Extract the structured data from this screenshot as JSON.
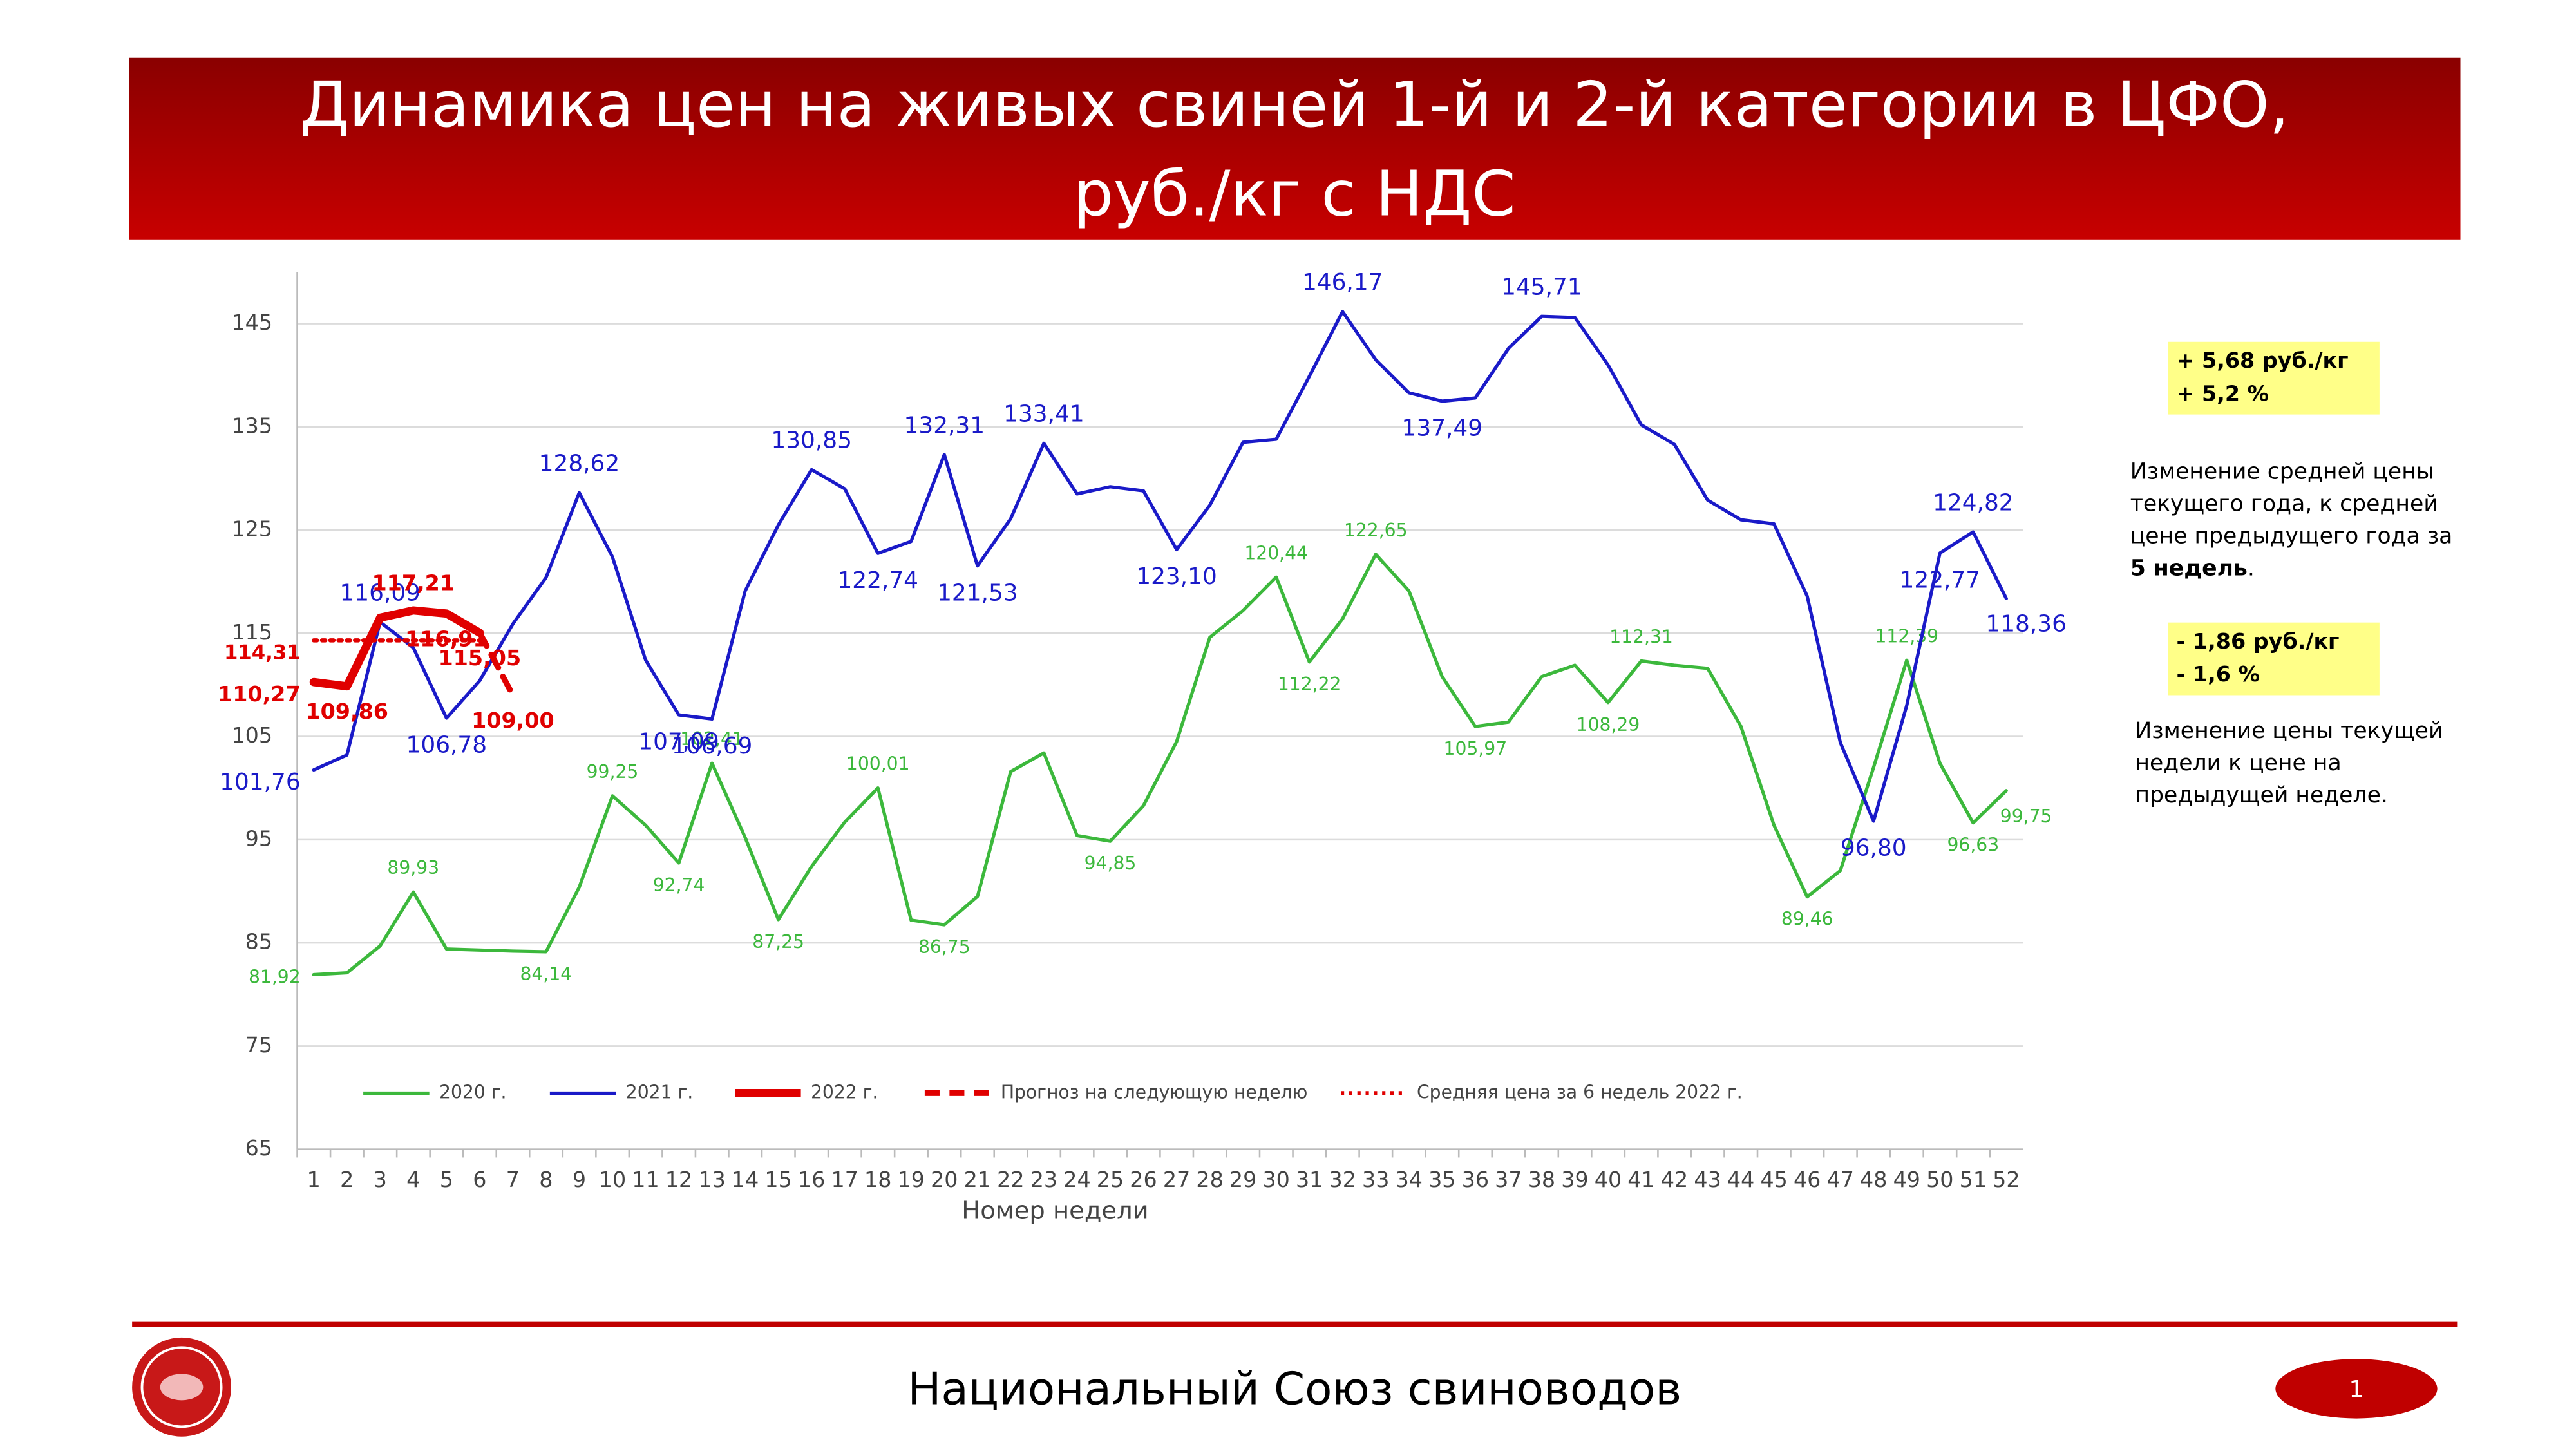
{
  "header": {
    "title_lines": [
      "Динамика цен на живых свиней 1-й и 2-й категории в ЦФО,",
      "руб./кг с НДС"
    ]
  },
  "chart_data": {
    "type": "line",
    "x_label": "Номер недели",
    "categories": [
      "1",
      "2",
      "3",
      "4",
      "5",
      "6",
      "7",
      "8",
      "9",
      "10",
      "11",
      "12",
      "13",
      "14",
      "15",
      "16",
      "17",
      "18",
      "19",
      "20",
      "21",
      "22",
      "23",
      "24",
      "25",
      "26",
      "27",
      "28",
      "29",
      "30",
      "31",
      "32",
      "33",
      "34",
      "35",
      "36",
      "37",
      "38",
      "39",
      "40",
      "41",
      "42",
      "43",
      "44",
      "45",
      "46",
      "47",
      "48",
      "49",
      "50",
      "51",
      "52"
    ],
    "ylim": [
      65,
      150
    ],
    "yticks": [
      65,
      75,
      85,
      95,
      105,
      115,
      125,
      135,
      145
    ],
    "grid": true,
    "series": [
      {
        "name": "2020 г.",
        "color": "#3cb83c",
        "style": "solid",
        "values": [
          81.92,
          82.1,
          84.7,
          89.93,
          84.4,
          84.3,
          84.2,
          84.14,
          90.4,
          99.25,
          96.4,
          92.74,
          102.41,
          95.2,
          87.25,
          92.4,
          96.7,
          100.01,
          87.2,
          86.75,
          89.5,
          101.6,
          103.4,
          95.4,
          94.85,
          98.3,
          104.5,
          114.6,
          117.2,
          120.44,
          112.22,
          116.4,
          122.65,
          119.1,
          110.8,
          105.97,
          106.4,
          110.8,
          111.9,
          108.29,
          112.31,
          111.9,
          111.6,
          106,
          96.4,
          89.46,
          92,
          102,
          112.39,
          102.4,
          96.63,
          99.75
        ],
        "value_labels": [
          "81,92",
          null,
          null,
          "89,93",
          null,
          null,
          null,
          "84,14",
          null,
          "99,25",
          null,
          "92,74",
          "102,41",
          null,
          "87,25",
          null,
          null,
          "100,01",
          null,
          "86,75",
          null,
          null,
          null,
          null,
          "94,85",
          null,
          null,
          null,
          null,
          "120,44",
          "112,22",
          null,
          "122,65",
          null,
          null,
          "105,97",
          null,
          null,
          null,
          "108,29",
          "112,31",
          null,
          null,
          null,
          null,
          "89,46",
          null,
          null,
          "112,39",
          null,
          "96,63",
          "99,75"
        ]
      },
      {
        "name": "2021 г.",
        "color": "#1a1ac8",
        "style": "solid",
        "values": [
          101.76,
          103.2,
          116.09,
          113.6,
          106.78,
          110.4,
          115.9,
          120.4,
          128.62,
          122.4,
          112.4,
          107.09,
          106.69,
          119.1,
          125.5,
          130.85,
          129,
          122.74,
          123.9,
          132.31,
          121.53,
          126.1,
          133.41,
          128.5,
          129.2,
          128.8,
          123.1,
          127.4,
          133.5,
          133.8,
          139.9,
          146.17,
          141.5,
          138.3,
          137.49,
          137.8,
          142.6,
          145.71,
          145.6,
          141,
          135.2,
          133.3,
          127.9,
          126,
          125.6,
          118.6,
          104.4,
          96.8,
          108,
          122.77,
          124.82,
          118.36
        ],
        "value_labels": [
          "101,76",
          null,
          "116,09",
          null,
          "106,78",
          null,
          null,
          null,
          "128,62",
          null,
          null,
          "107,09",
          "106,69",
          null,
          null,
          "130,85",
          null,
          "122,74",
          null,
          "132,31",
          "121,53",
          null,
          "133,41",
          null,
          null,
          null,
          "123,10",
          null,
          null,
          null,
          null,
          "146,17",
          null,
          null,
          "137,49",
          null,
          null,
          "145,71",
          null,
          null,
          null,
          null,
          null,
          null,
          null,
          null,
          null,
          "96,80",
          null,
          "122,77",
          "124,82",
          "118,36"
        ]
      },
      {
        "name": "2022 г.",
        "color": "#e00000",
        "style": "thick",
        "values": [
          110.27,
          109.86,
          116.5,
          117.21,
          116.91,
          115.05,
          null,
          null,
          null,
          null,
          null,
          null,
          null,
          null,
          null,
          null,
          null,
          null,
          null,
          null,
          null,
          null,
          null,
          null,
          null,
          null,
          null,
          null,
          null,
          null,
          null,
          null,
          null,
          null,
          null,
          null,
          null,
          null,
          null,
          null,
          null,
          null,
          null,
          null,
          null,
          null,
          null,
          null,
          null,
          null,
          null,
          null
        ],
        "value_labels": [
          "110,27",
          "109,86",
          null,
          "117,21",
          "116,91",
          "115,05",
          null,
          null,
          null,
          null,
          null,
          null,
          null,
          null,
          null,
          null,
          null,
          null,
          null,
          null,
          null,
          null,
          null,
          null,
          null,
          null,
          null,
          null,
          null,
          null,
          null,
          null,
          null,
          null,
          null,
          null,
          null,
          null,
          null,
          null,
          null,
          null,
          null,
          null,
          null,
          null,
          null,
          null,
          null,
          null,
          null,
          null
        ]
      },
      {
        "name": "Прогноз на следующую неделю",
        "color": "#e00000",
        "style": "dashed",
        "values": [
          null,
          null,
          null,
          null,
          null,
          115.05,
          109,
          null,
          null,
          null,
          null,
          null,
          null,
          null,
          null,
          null,
          null,
          null,
          null,
          null,
          null,
          null,
          null,
          null,
          null,
          null,
          null,
          null,
          null,
          null,
          null,
          null,
          null,
          null,
          null,
          null,
          null,
          null,
          null,
          null,
          null,
          null,
          null,
          null,
          null,
          null,
          null,
          null,
          null,
          null,
          null,
          null
        ],
        "value_labels": [
          null,
          null,
          null,
          null,
          null,
          null,
          "109,00",
          null,
          null,
          null,
          null,
          null,
          null,
          null,
          null,
          null,
          null,
          null,
          null,
          null,
          null,
          null,
          null,
          null,
          null,
          null,
          null,
          null,
          null,
          null,
          null,
          null,
          null,
          null,
          null,
          null,
          null,
          null,
          null,
          null,
          null,
          null,
          null,
          null,
          null,
          null,
          null,
          null,
          null,
          null,
          null,
          null
        ]
      },
      {
        "name": "Средняя цена за 6 недель 2022 г.",
        "color": "#e00000",
        "style": "dotted",
        "values": [
          114.31,
          114.31,
          114.31,
          114.31,
          114.31,
          114.31,
          null,
          null,
          null,
          null,
          null,
          null,
          null,
          null,
          null,
          null,
          null,
          null,
          null,
          null,
          null,
          null,
          null,
          null,
          null,
          null,
          null,
          null,
          null,
          null,
          null,
          null,
          null,
          null,
          null,
          null,
          null,
          null,
          null,
          null,
          null,
          null,
          null,
          null,
          null,
          null,
          null,
          null,
          null,
          null,
          null,
          null
        ],
        "value_labels": [
          "114,31",
          null,
          null,
          null,
          null,
          null,
          null,
          null,
          null,
          null,
          null,
          null,
          null,
          null,
          null,
          null,
          null,
          null,
          null,
          null,
          null,
          null,
          null,
          null,
          null,
          null,
          null,
          null,
          null,
          null,
          null,
          null,
          null,
          null,
          null,
          null,
          null,
          null,
          null,
          null,
          null,
          null,
          null,
          null,
          null,
          null,
          null,
          null,
          null,
          null,
          null,
          null
        ]
      }
    ]
  },
  "notes": [
    {
      "box": [
        "+ 5,68 руб./кг",
        "+ 5,2 %"
      ],
      "lines": [
        "Изменение средней цены",
        "текущего года, к средней",
        "цене предыдущего года за"
      ],
      "bold": "5 недель",
      "tail": "."
    },
    {
      "box": [
        "- 1,86 руб./кг",
        "- 1,6 %"
      ],
      "lines": [
        "Изменение цены текущей",
        "недели к цене на",
        "предыдущей неделе."
      ]
    }
  ],
  "footer": {
    "text": "Национальный Союз свиноводов",
    "page": "1"
  }
}
